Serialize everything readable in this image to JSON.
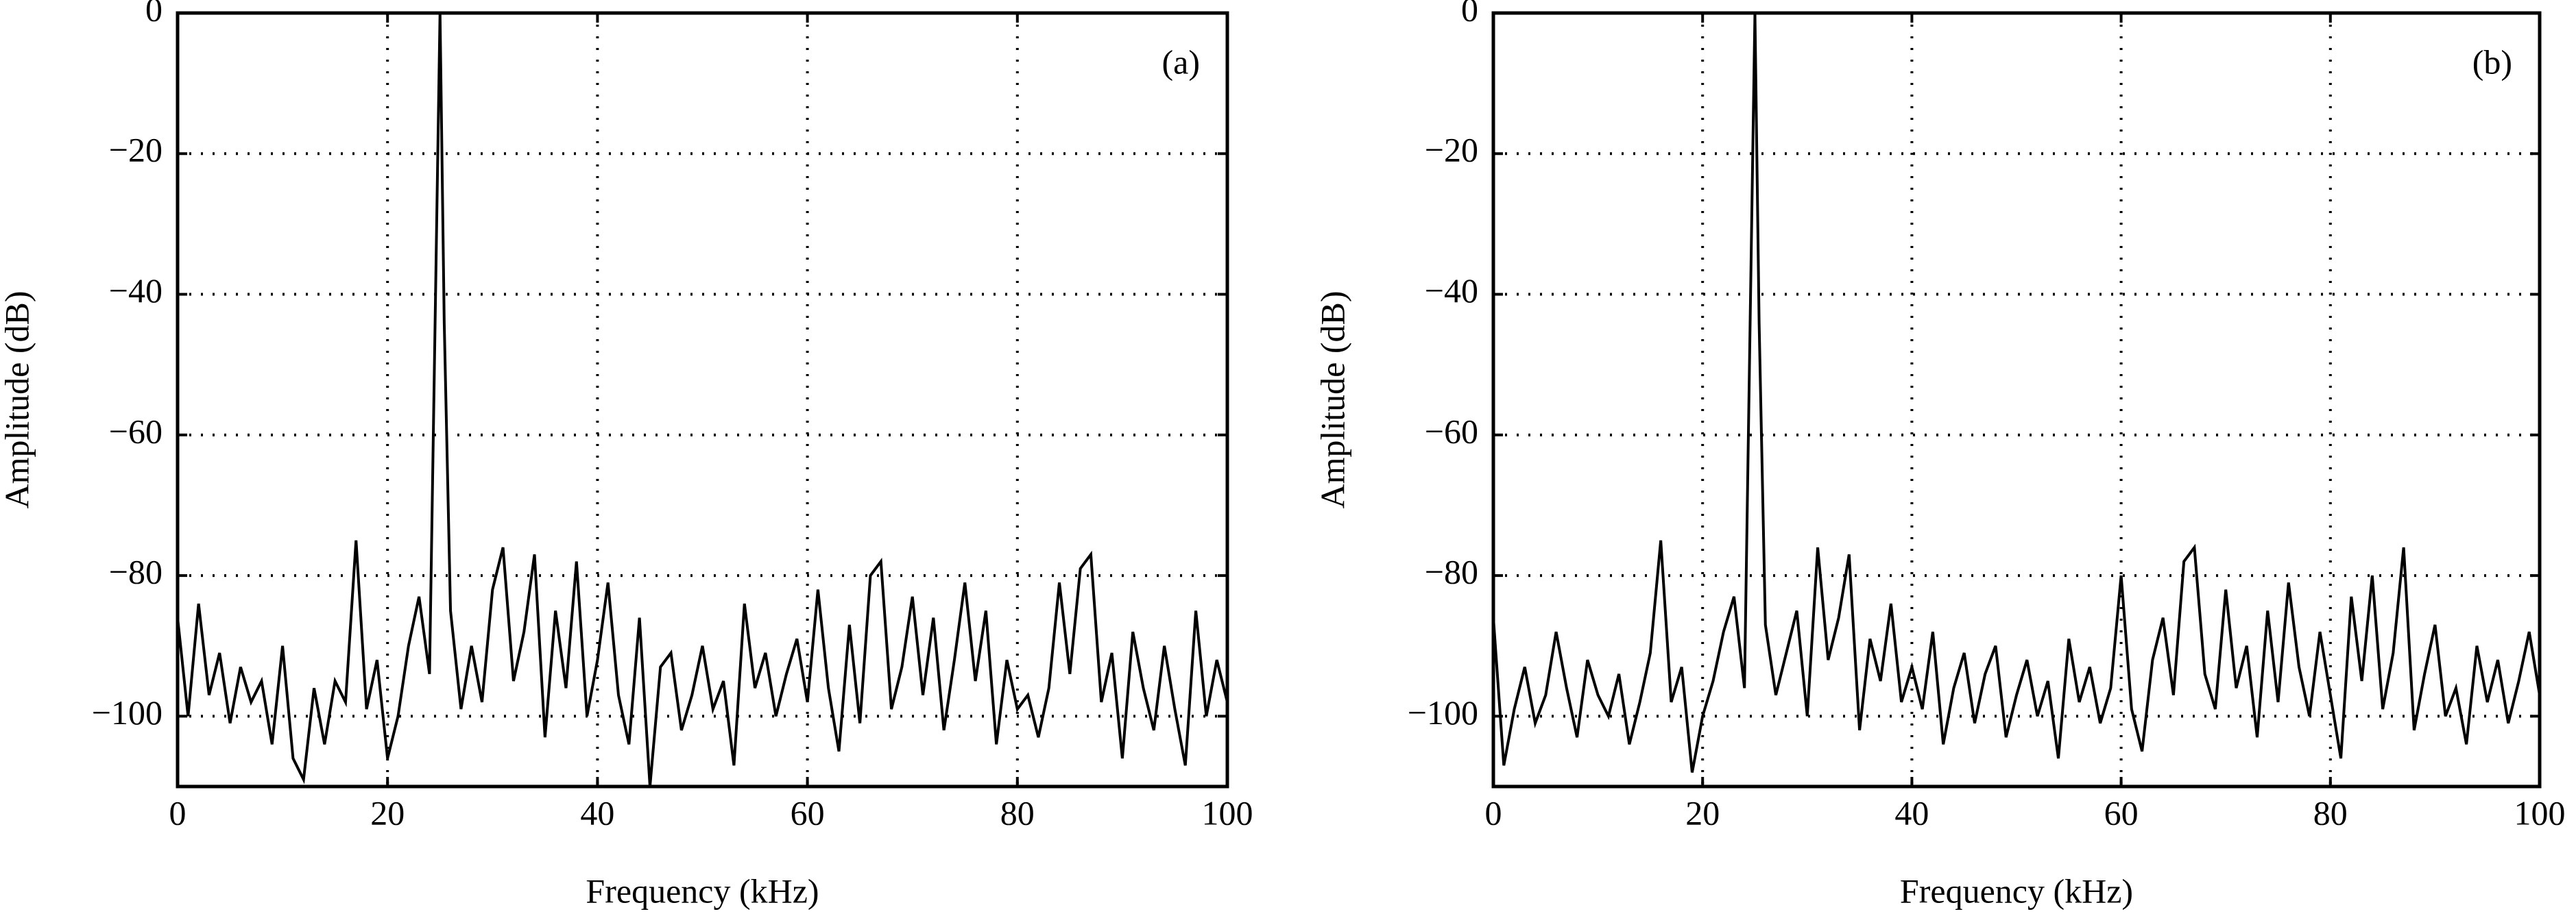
{
  "chart_data": [
    {
      "type": "line",
      "panel_label": "(a)",
      "xlabel": "Frequency (kHz)",
      "ylabel": "Amplitude (dB)",
      "xlim": [
        0,
        100
      ],
      "ylim": [
        -110,
        0
      ],
      "xticks": [
        0,
        20,
        40,
        60,
        80,
        100
      ],
      "yticks": [
        {
          "value": -100,
          "label": "−100"
        },
        {
          "value": -80,
          "label": "−80"
        },
        {
          "value": -60,
          "label": "−60"
        },
        {
          "value": -40,
          "label": "−40"
        },
        {
          "value": -20,
          "label": "−20"
        },
        0
      ],
      "grid": true,
      "x": [
        0,
        1,
        2,
        3,
        4,
        5,
        6,
        7,
        8,
        9,
        10,
        11,
        12,
        13,
        14,
        15,
        16,
        17,
        18,
        19,
        20,
        21,
        22,
        23,
        24,
        25,
        25.4,
        26,
        27,
        28,
        29,
        30,
        31,
        32,
        33,
        34,
        35,
        36,
        37,
        38,
        39,
        40,
        41,
        42,
        43,
        44,
        45,
        46,
        47,
        48,
        49,
        50,
        51,
        52,
        53,
        54,
        55,
        56,
        57,
        58,
        59,
        60,
        61,
        62,
        63,
        64,
        65,
        66,
        67,
        68,
        69,
        70,
        71,
        72,
        73,
        74,
        75,
        76,
        77,
        78,
        79,
        80,
        81,
        82,
        83,
        84,
        85,
        86,
        87,
        88,
        89,
        90,
        91,
        92,
        93,
        94,
        95,
        96,
        97,
        98,
        99,
        100
      ],
      "series": [
        {
          "color": "#000000",
          "values": [
            -86,
            -100,
            -84,
            -97,
            -91,
            -101,
            -93,
            -98,
            -95,
            -104,
            -90,
            -106,
            -109,
            -96,
            -104,
            -95,
            -98,
            -75,
            -99,
            -92,
            -106,
            -100,
            -90,
            -83,
            -94,
            0,
            -44,
            -85,
            -99,
            -90,
            -98,
            -82,
            -76,
            -95,
            -88,
            -77,
            -103,
            -85,
            -96,
            -78,
            -100,
            -92,
            -81,
            -97,
            -104,
            -86,
            -110,
            -93,
            -91,
            -102,
            -97,
            -90,
            -99,
            -95,
            -107,
            -84,
            -96,
            -91,
            -100,
            -94,
            -89,
            -98,
            -82,
            -96,
            -105,
            -87,
            -101,
            -80,
            -78,
            -99,
            -93,
            -83,
            -97,
            -86,
            -102,
            -92,
            -81,
            -95,
            -85,
            -104,
            -92,
            -99,
            -97,
            -103,
            -96,
            -81,
            -94,
            -79,
            -77,
            -98,
            -91,
            -106,
            -88,
            -96,
            -102,
            -90,
            -99,
            -107,
            -85,
            -100,
            -92,
            -98
          ]
        }
      ]
    },
    {
      "type": "line",
      "panel_label": "(b)",
      "xlabel": "Frequency (kHz)",
      "ylabel": "Amplitude (dB)",
      "xlim": [
        0,
        100
      ],
      "ylim": [
        -110,
        0
      ],
      "xticks": [
        0,
        20,
        40,
        60,
        80,
        100
      ],
      "yticks": [
        {
          "value": -100,
          "label": "−100"
        },
        {
          "value": -80,
          "label": "−80"
        },
        {
          "value": -60,
          "label": "−60"
        },
        {
          "value": -40,
          "label": "−40"
        },
        {
          "value": -20,
          "label": "−20"
        },
        0
      ],
      "grid": true,
      "x": [
        0,
        1,
        2,
        3,
        4,
        5,
        6,
        7,
        8,
        9,
        10,
        11,
        12,
        13,
        14,
        15,
        16,
        17,
        18,
        19,
        20,
        21,
        22,
        23,
        24,
        25,
        25.4,
        26,
        27,
        28,
        29,
        30,
        31,
        32,
        33,
        34,
        35,
        36,
        37,
        38,
        39,
        40,
        41,
        42,
        43,
        44,
        45,
        46,
        47,
        48,
        49,
        50,
        51,
        52,
        53,
        54,
        55,
        56,
        57,
        58,
        59,
        60,
        61,
        62,
        63,
        64,
        65,
        66,
        67,
        68,
        69,
        70,
        71,
        72,
        73,
        74,
        75,
        76,
        77,
        78,
        79,
        80,
        81,
        82,
        83,
        84,
        85,
        86,
        87,
        88,
        89,
        90,
        91,
        92,
        93,
        94,
        95,
        96,
        97,
        98,
        99,
        100
      ],
      "series": [
        {
          "color": "#000000",
          "values": [
            -86,
            -107,
            -99,
            -93,
            -101,
            -97,
            -88,
            -96,
            -103,
            -92,
            -97,
            -100,
            -94,
            -104,
            -98,
            -91,
            -75,
            -98,
            -93,
            -108,
            -100,
            -95,
            -88,
            -83,
            -96,
            0,
            -44,
            -87,
            -97,
            -91,
            -85,
            -100,
            -76,
            -92,
            -86,
            -77,
            -102,
            -89,
            -95,
            -84,
            -98,
            -93,
            -99,
            -88,
            -104,
            -96,
            -91,
            -101,
            -94,
            -90,
            -103,
            -97,
            -92,
            -100,
            -95,
            -106,
            -89,
            -98,
            -93,
            -101,
            -96,
            -80,
            -99,
            -105,
            -92,
            -86,
            -97,
            -78,
            -76,
            -94,
            -99,
            -82,
            -96,
            -90,
            -103,
            -85,
            -98,
            -81,
            -93,
            -100,
            -88,
            -97,
            -106,
            -83,
            -95,
            -80,
            -99,
            -91,
            -76,
            -102,
            -94,
            -87,
            -100,
            -96,
            -104,
            -90,
            -98,
            -92,
            -101,
            -95,
            -88,
            -97
          ]
        }
      ]
    }
  ]
}
